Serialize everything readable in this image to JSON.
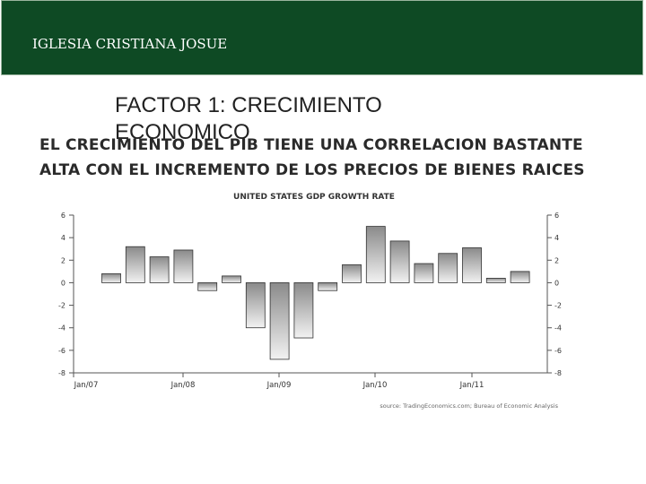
{
  "header": {
    "title": "IGLESIA CRISTIANA JOSUE"
  },
  "slide": {
    "title": "FACTOR 1: CRECIMIENTO ECONOMICO",
    "body": "EL CRECIMIENTO DEL PIB TIENE UNA CORRELACION BASTANTE ALTA CON EL INCREMENTO DE LOS PRECIOS DE BIENES RAICES"
  },
  "chart_data": {
    "type": "bar",
    "title": "UNITED STATES GDP GROWTH RATE",
    "source": "source: TradingEconomics.com; Bureau of Economic Analysis",
    "categories": [
      "2007Q1",
      "2007Q2",
      "2007Q3",
      "2007Q4",
      "2008Q1",
      "2008Q2",
      "2008Q3",
      "2008Q4",
      "2009Q1",
      "2009Q2",
      "2009Q3",
      "2009Q4",
      "2010Q1",
      "2010Q2",
      "2010Q3",
      "2010Q4",
      "2011Q1",
      "2011Q2",
      "2011Q3"
    ],
    "values": [
      0.8,
      3.2,
      2.3,
      2.9,
      -0.7,
      0.6,
      -4.0,
      -6.8,
      -4.9,
      -0.7,
      1.6,
      5.0,
      3.7,
      1.7,
      2.6,
      3.1,
      0.4,
      1.0,
      0
    ],
    "x_tick_labels": [
      "Jan/07",
      "Jan/08",
      "Jan/09",
      "Jan/10",
      "Jan/11"
    ],
    "y_ticks_left": [
      "6",
      "4",
      "2",
      "0",
      "-2",
      "-4",
      "-6",
      "-8"
    ],
    "y_ticks_right": [
      "6",
      "4",
      "2",
      "0",
      "-2",
      "-4",
      "-6",
      "-8"
    ],
    "ylim": [
      -8,
      6
    ],
    "xlabel": "",
    "ylabel": ""
  }
}
